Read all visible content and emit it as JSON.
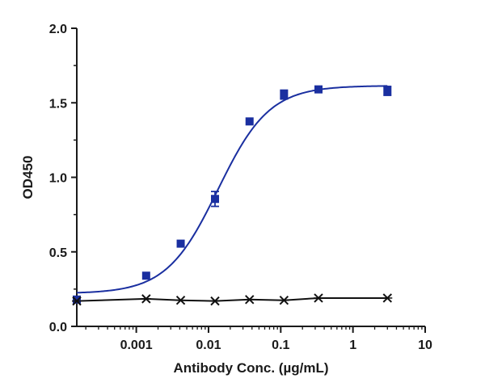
{
  "chart_data": {
    "type": "scatter",
    "title": "",
    "xlabel": "Antibody Conc. (µg/mL)",
    "ylabel": "OD450",
    "x_scale": "log",
    "xlim": [
      0.00015,
      10
    ],
    "ylim": [
      0,
      2.0
    ],
    "x_ticks": [
      0.001,
      0.01,
      0.1,
      1,
      10
    ],
    "x_tick_labels": [
      "0.001",
      "0.01",
      "0.1",
      "1",
      "10"
    ],
    "y_ticks": [
      0,
      0.5,
      1.0,
      1.5,
      2.0
    ],
    "y_tick_labels": [
      "0.0",
      "0.5",
      "1.0",
      "1.5",
      "2.0"
    ],
    "grid": false,
    "legend": "none",
    "series": [
      {
        "marker": "square",
        "color": "#1a2fa0",
        "x": [
          0.00015,
          0.00137,
          0.00412,
          0.0123,
          0.037,
          0.111,
          0.333,
          3
        ],
        "y": [
          0.18,
          0.34,
          0.555,
          0.855,
          1.375,
          1.555,
          1.59,
          1.58
        ],
        "error": [
          0,
          0,
          0,
          0.05,
          0,
          0.03,
          0,
          0.03
        ],
        "fit": {
          "bottom": 0.22,
          "top": 1.615,
          "ec50": 0.0135,
          "hill": 1.22
        }
      },
      {
        "marker": "cross",
        "color": "#111111",
        "x": [
          0.00015,
          0.00137,
          0.00412,
          0.0123,
          0.037,
          0.111,
          0.333,
          3
        ],
        "y": [
          0.17,
          0.185,
          0.175,
          0.17,
          0.18,
          0.175,
          0.19,
          0.19
        ]
      }
    ]
  }
}
